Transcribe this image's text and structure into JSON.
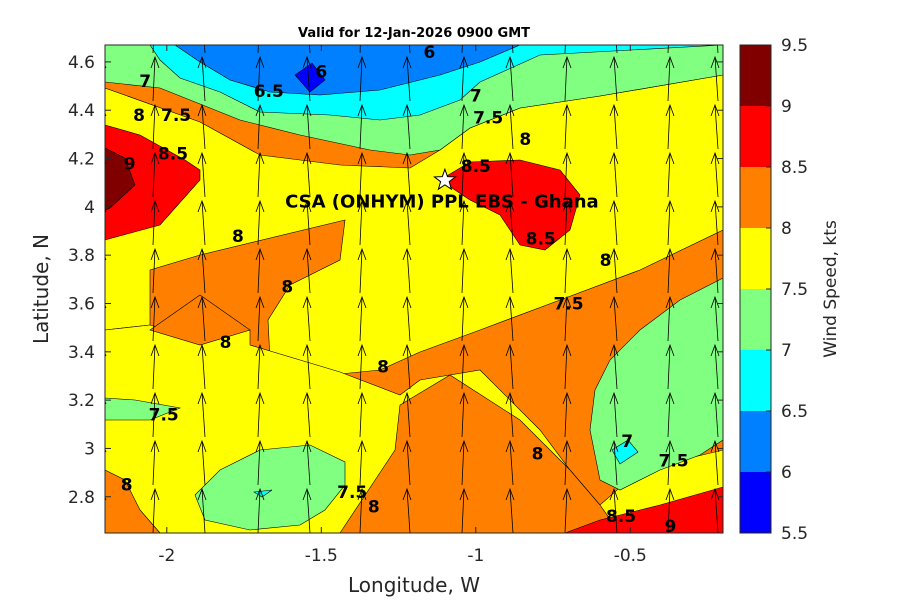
{
  "chart_data": {
    "type": "heatmap",
    "title": "Valid for 12-Jan-2026 0900 GMT",
    "xlabel": "Longitude, W",
    "ylabel": "Latitude, N",
    "xlim": [
      -2.2,
      -0.2
    ],
    "ylim": [
      2.65,
      4.67
    ],
    "x_ticks": [
      "-2",
      "-1.5",
      "-1",
      "-0.5"
    ],
    "x_tick_values": [
      -2,
      -1.5,
      -1,
      -0.5
    ],
    "y_ticks": [
      "2.8",
      "3",
      "3.2",
      "3.4",
      "3.6",
      "3.8",
      "4",
      "4.2",
      "4.4",
      "4.6"
    ],
    "y_tick_values": [
      2.8,
      3.0,
      3.2,
      3.4,
      3.6,
      3.8,
      4.0,
      4.2,
      4.4,
      4.6
    ],
    "colorbar": {
      "label": "Wind Speed, kts",
      "ticks": [
        "5.5",
        "6",
        "6.5",
        "7",
        "7.5",
        "8",
        "8.5",
        "9",
        "9.5"
      ],
      "levels": [
        5.5,
        6,
        6.5,
        7,
        7.5,
        8,
        8.5,
        9,
        9.5
      ],
      "colors": [
        "#0000ff",
        "#0080ff",
        "#00ffff",
        "#80ff80",
        "#ffff00",
        "#ff8000",
        "#ff0000",
        "#800000"
      ]
    },
    "site": {
      "label": "CSA (ONHYM) PPL EBS  - Ghana",
      "lon": -1.1,
      "lat": 4.11
    },
    "contour_labels": [
      {
        "text": "6",
        "lon": -1.5,
        "lat": 4.56
      },
      {
        "text": "6",
        "lon": -1.15,
        "lat": 4.64
      },
      {
        "text": "6.5",
        "lon": -1.67,
        "lat": 4.48
      },
      {
        "text": "7",
        "lon": -2.07,
        "lat": 4.52
      },
      {
        "text": "7",
        "lon": -1.0,
        "lat": 4.46
      },
      {
        "text": "7.5",
        "lon": -1.97,
        "lat": 4.38
      },
      {
        "text": "7.5",
        "lon": -0.96,
        "lat": 4.37
      },
      {
        "text": "7.5",
        "lon": -0.7,
        "lat": 3.6
      },
      {
        "text": "7.5",
        "lon": -2.01,
        "lat": 3.14
      },
      {
        "text": "7.5",
        "lon": -1.4,
        "lat": 2.82
      },
      {
        "text": "7.5",
        "lon": -0.36,
        "lat": 2.95
      },
      {
        "text": "7",
        "lon": -0.51,
        "lat": 3.03
      },
      {
        "text": "8",
        "lon": -2.09,
        "lat": 4.38
      },
      {
        "text": "8",
        "lon": -0.84,
        "lat": 4.28
      },
      {
        "text": "8",
        "lon": -1.77,
        "lat": 3.88
      },
      {
        "text": "8",
        "lon": -1.61,
        "lat": 3.67
      },
      {
        "text": "8",
        "lon": -0.58,
        "lat": 3.78
      },
      {
        "text": "8",
        "lon": -1.81,
        "lat": 3.44
      },
      {
        "text": "8",
        "lon": -1.3,
        "lat": 3.34
      },
      {
        "text": "8",
        "lon": -0.8,
        "lat": 2.98
      },
      {
        "text": "8",
        "lon": -2.13,
        "lat": 2.85
      },
      {
        "text": "8",
        "lon": -1.33,
        "lat": 2.76
      },
      {
        "text": "8.5",
        "lon": -1.98,
        "lat": 4.22
      },
      {
        "text": "8.5",
        "lon": -1.0,
        "lat": 4.17
      },
      {
        "text": "8.5",
        "lon": -0.79,
        "lat": 3.87
      },
      {
        "text": "8.5",
        "lon": -0.53,
        "lat": 2.72
      },
      {
        "text": "9",
        "lon": -2.12,
        "lat": 4.18
      },
      {
        "text": "9",
        "lon": -0.37,
        "lat": 2.68
      }
    ]
  }
}
